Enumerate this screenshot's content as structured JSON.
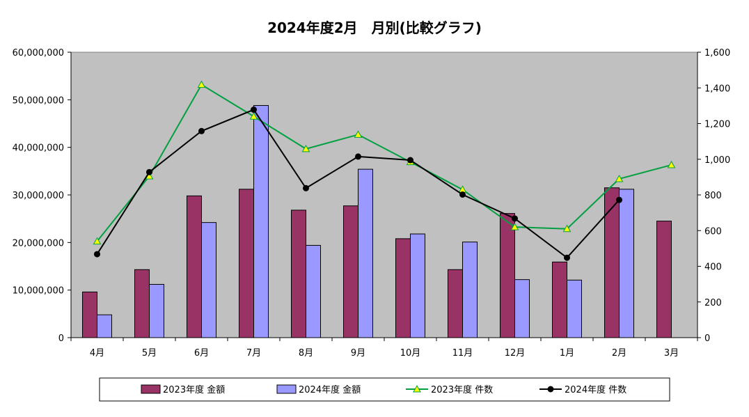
{
  "chart_data": {
    "type": "bar+line",
    "title": "2024年度2月　月別(比較グラフ)",
    "categories": [
      "4月",
      "5月",
      "6月",
      "7月",
      "8月",
      "9月",
      "10月",
      "11月",
      "12月",
      "1月",
      "2月",
      "3月"
    ],
    "left_axis": {
      "ylim": [
        0,
        60000000
      ],
      "ticks": [
        0,
        10000000,
        20000000,
        30000000,
        40000000,
        50000000,
        60000000
      ],
      "tick_labels": [
        "0",
        "10,000,000",
        "20,000,000",
        "30,000,000",
        "40,000,000",
        "50,000,000",
        "60,000,000"
      ]
    },
    "right_axis": {
      "ylim": [
        0,
        1600
      ],
      "ticks": [
        0,
        200,
        400,
        600,
        800,
        1000,
        1200,
        1400,
        1600
      ],
      "tick_labels": [
        "0",
        "200",
        "400",
        "600",
        "800",
        "1,000",
        "1,200",
        "1,400",
        "1,600"
      ]
    },
    "bar_series": [
      {
        "name": "2023年度 金額",
        "color": "#993366",
        "values": [
          9600000,
          14300000,
          29800000,
          31200000,
          26800000,
          27700000,
          20800000,
          14300000,
          26100000,
          15900000,
          31500000,
          24500000
        ]
      },
      {
        "name": "2024年度 金額",
        "color": "#9999FF",
        "values": [
          4800000,
          11200000,
          24200000,
          48800000,
          19400000,
          35400000,
          21800000,
          20100000,
          12200000,
          12100000,
          31200000,
          null
        ]
      }
    ],
    "line_series": [
      {
        "name": "2023年度 件数",
        "color": "#00A040",
        "marker": "triangle",
        "marker_fill": "#FFFF00",
        "values": [
          540,
          905,
          1418,
          1240,
          1058,
          1138,
          985,
          830,
          620,
          610,
          890,
          968
        ]
      },
      {
        "name": "2024年度 件数",
        "color": "#000000",
        "marker": "circle",
        "marker_fill": "#000000",
        "values": [
          468,
          928,
          1158,
          1278,
          838,
          1015,
          995,
          802,
          668,
          448,
          772,
          null
        ]
      }
    ],
    "legend_position": "bottom",
    "plot_background": "#C0C0C0"
  }
}
